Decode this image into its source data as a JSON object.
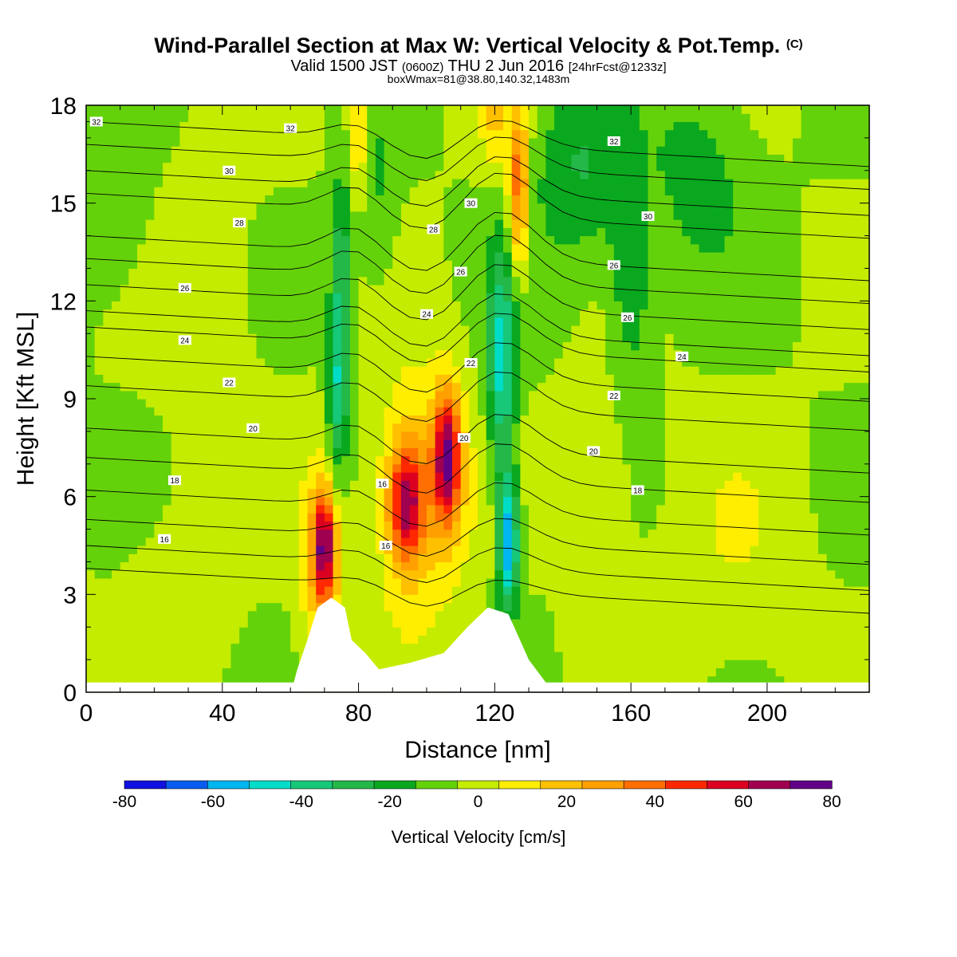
{
  "titles": {
    "main": "Wind-Parallel Section at Max W: Vertical Velocity & Pot.Temp.",
    "copyright": "(C)",
    "valid_pre": "Valid 1500 JST",
    "valid_utc": "(0600Z)",
    "valid_date": "THU 2 Jun 2016",
    "valid_fcst": "[24hrFcst@1233z]",
    "boxwmax": "boxWmax=81@38.80,140.32,1483m"
  },
  "chart_data": {
    "type": "heatmap",
    "xlabel": "Distance [nm]",
    "ylabel": "Height [Kft MSL]",
    "xlim": [
      0,
      230
    ],
    "ylim": [
      0,
      18
    ],
    "x_ticks": [
      0,
      40,
      80,
      120,
      160,
      200
    ],
    "y_ticks": [
      0,
      3,
      6,
      9,
      12,
      15,
      18
    ],
    "colorbar": {
      "label": "Vertical Velocity [cm/s]",
      "tick_labels": [
        "-80",
        "-60",
        "-40",
        "-20",
        "0",
        "20",
        "40",
        "60",
        "80"
      ],
      "levels": [
        -80,
        -70,
        -60,
        -50,
        -40,
        -30,
        -20,
        -10,
        0,
        10,
        20,
        30,
        40,
        50,
        60,
        70,
        80
      ],
      "colors": [
        "#1010e0",
        "#0a5cf0",
        "#00b6f0",
        "#00dcc8",
        "#16c878",
        "#24b848",
        "#0aa81e",
        "#64d20a",
        "#c4ec00",
        "#ffee00",
        "#ffc000",
        "#ffa000",
        "#ff6e00",
        "#ff2800",
        "#dc0020",
        "#a00050",
        "#620088"
      ]
    },
    "background_value": 0,
    "vertical_velocity_features": [
      {
        "x": 70,
        "z": 4.5,
        "w": 60,
        "sx": 3,
        "sz": 1.6
      },
      {
        "x": 69,
        "z": 4.0,
        "w": 30,
        "sx": 6,
        "sz": 3
      },
      {
        "x": 94,
        "z": 5.8,
        "w": 60,
        "sx": 5,
        "sz": 1.8
      },
      {
        "x": 106,
        "z": 7.2,
        "w": 70,
        "sx": 4,
        "sz": 2
      },
      {
        "x": 98,
        "z": 6,
        "w": 25,
        "sx": 14,
        "sz": 4
      },
      {
        "x": 124,
        "z": 4.6,
        "w": -60,
        "sx": 3,
        "sz": 2
      },
      {
        "x": 122,
        "z": 10,
        "w": -45,
        "sx": 4,
        "sz": 3.5
      },
      {
        "x": 74,
        "z": 9.5,
        "w": -40,
        "sx": 3,
        "sz": 2.8
      },
      {
        "x": 75,
        "z": 13.5,
        "w": -25,
        "sx": 3,
        "sz": 2.5
      },
      {
        "x": 127,
        "z": 15.5,
        "w": 50,
        "sx": 3,
        "sz": 2.5
      },
      {
        "x": 80,
        "z": 17,
        "w": 25,
        "sx": 3,
        "sz": 2
      },
      {
        "x": 120,
        "z": 17.5,
        "w": 20,
        "sx": 4,
        "sz": 1.5
      },
      {
        "x": 145,
        "z": 16,
        "w": -20,
        "sx": 14,
        "sz": 3
      },
      {
        "x": 180,
        "z": 16,
        "w": -15,
        "sx": 14,
        "sz": 3
      },
      {
        "x": 160,
        "z": 12.5,
        "w": -20,
        "sx": 6,
        "sz": 3
      },
      {
        "x": 35,
        "z": 12,
        "w": 8,
        "sx": 15,
        "sz": 5
      },
      {
        "x": 150,
        "z": 6,
        "w": 12,
        "sx": 10,
        "sz": 3
      },
      {
        "x": 85,
        "z": 15,
        "w": -12,
        "sx": 6,
        "sz": 3
      },
      {
        "x": 10,
        "z": 15,
        "w": -10,
        "sx": 10,
        "sz": 3
      },
      {
        "x": 190,
        "z": 4,
        "w": 8,
        "sx": 20,
        "sz": 4
      },
      {
        "x": 30,
        "z": 3,
        "w": 8,
        "sx": 15,
        "sz": 3
      }
    ],
    "terrain_nm_kft": [
      [
        0,
        0.3
      ],
      [
        61,
        0.3
      ],
      [
        62,
        0.7
      ],
      [
        65,
        1.6
      ],
      [
        68,
        2.6
      ],
      [
        72,
        2.9
      ],
      [
        76,
        2.6
      ],
      [
        78,
        1.6
      ],
      [
        82,
        1.2
      ],
      [
        86,
        0.7
      ],
      [
        95,
        0.9
      ],
      [
        105,
        1.2
      ],
      [
        112,
        2.0
      ],
      [
        118,
        2.6
      ],
      [
        124,
        2.4
      ],
      [
        130,
        1.0
      ],
      [
        135,
        0.3
      ],
      [
        230,
        0.3
      ]
    ],
    "theta_contours": [
      {
        "value": 16,
        "left_z": 3.8,
        "peak_z": 0.4
      },
      {
        "value": 17,
        "left_z": 4.5,
        "peak_z": 0.7
      },
      {
        "value": 18,
        "left_z": 5.3,
        "peak_z": 0.8
      },
      {
        "value": 19,
        "left_z": 6.2,
        "peak_z": 1.0
      },
      {
        "value": 20,
        "left_z": 7.2,
        "peak_z": 1.2
      },
      {
        "value": 21,
        "left_z": 8.1,
        "peak_z": 1.2
      },
      {
        "value": 22,
        "left_z": 9.4,
        "peak_z": 1.2
      },
      {
        "value": 23,
        "left_z": 10.3,
        "peak_z": 1.2
      },
      {
        "value": 24,
        "left_z": 11.2,
        "peak_z": 1.2
      },
      {
        "value": 25,
        "left_z": 11.7,
        "peak_z": 1.3
      },
      {
        "value": 26,
        "left_z": 12.5,
        "peak_z": 1.4
      },
      {
        "value": 27,
        "left_z": 13.3,
        "peak_z": 1.5
      },
      {
        "value": 28,
        "left_z": 14.0,
        "peak_z": 1.5
      },
      {
        "value": 29,
        "left_z": 15.3,
        "peak_z": 1.4
      },
      {
        "value": 30,
        "left_z": 16.0,
        "peak_z": 1.2
      },
      {
        "value": 31,
        "left_z": 16.8,
        "peak_z": 1.0
      },
      {
        "value": 32,
        "left_z": 17.5,
        "peak_z": 0.8
      }
    ],
    "theta_labels": [
      {
        "text": "32",
        "x": 3,
        "z": 17.5
      },
      {
        "text": "32",
        "x": 60,
        "z": 17.3
      },
      {
        "text": "32",
        "x": 155,
        "z": 16.9
      },
      {
        "text": "30",
        "x": 42,
        "z": 16.0
      },
      {
        "text": "30",
        "x": 113,
        "z": 15.0
      },
      {
        "text": "30",
        "x": 165,
        "z": 14.6
      },
      {
        "text": "28",
        "x": 45,
        "z": 14.4
      },
      {
        "text": "28",
        "x": 102,
        "z": 14.2
      },
      {
        "text": "26",
        "x": 29,
        "z": 12.4
      },
      {
        "text": "26",
        "x": 110,
        "z": 12.9
      },
      {
        "text": "26",
        "x": 155,
        "z": 13.1
      },
      {
        "text": "26",
        "x": 159,
        "z": 11.5
      },
      {
        "text": "24",
        "x": 29,
        "z": 10.8
      },
      {
        "text": "24",
        "x": 100,
        "z": 11.6
      },
      {
        "text": "24",
        "x": 175,
        "z": 10.3
      },
      {
        "text": "22",
        "x": 42,
        "z": 9.5
      },
      {
        "text": "22",
        "x": 113,
        "z": 10.1
      },
      {
        "text": "22",
        "x": 155,
        "z": 9.1
      },
      {
        "text": "20",
        "x": 49,
        "z": 8.1
      },
      {
        "text": "20",
        "x": 111,
        "z": 7.8
      },
      {
        "text": "20",
        "x": 149,
        "z": 7.4
      },
      {
        "text": "18",
        "x": 26,
        "z": 6.5
      },
      {
        "text": "18",
        "x": 162,
        "z": 6.2
      },
      {
        "text": "16",
        "x": 87,
        "z": 6.4
      },
      {
        "text": "16",
        "x": 88,
        "z": 4.5
      },
      {
        "text": "16",
        "x": 23,
        "z": 4.7
      }
    ]
  }
}
